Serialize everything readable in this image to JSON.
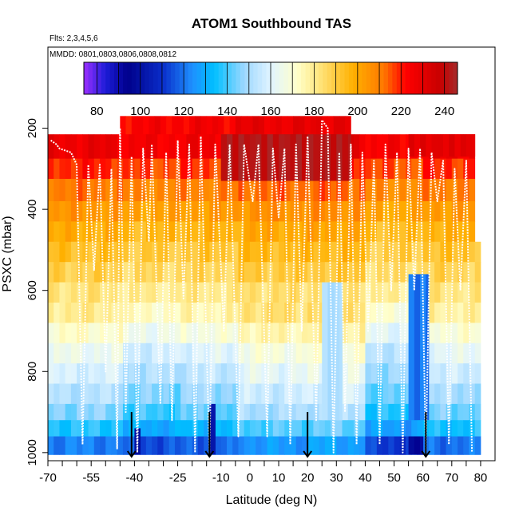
{
  "chart_data": {
    "type": "heatmap",
    "title": "ATOM1 Southbound TAS",
    "flights_label": "Flts: 2,3,4,5,6",
    "dates_label": "MMDD: 0801,0803,0806,0808,0812",
    "xlabel": "Latitude (deg N)",
    "ylabel": "PSXC (mbar)",
    "xlim": [
      -70,
      85
    ],
    "ylim": [
      1020,
      0
    ],
    "x_ticks": [
      -70,
      -55,
      -40,
      -25,
      -10,
      0,
      10,
      20,
      30,
      40,
      50,
      60,
      70,
      80
    ],
    "x_tick_labels": [
      "-70",
      "-55",
      "-40",
      "-25",
      "-10",
      "0",
      "10",
      "20",
      "30",
      "40",
      "50",
      "60",
      "70",
      "80"
    ],
    "x_minor_ticks": [
      -65,
      -60,
      -50,
      -45,
      -35,
      -30,
      -20,
      -15,
      -5,
      5,
      15,
      25,
      35,
      45,
      55,
      65,
      75
    ],
    "y_ticks": [
      200,
      400,
      600,
      800,
      1000
    ],
    "y_tick_labels": [
      "200",
      "400",
      "600",
      "800",
      "1000"
    ],
    "colorbar": {
      "min": 74,
      "max": 246,
      "ticks": [
        80,
        100,
        120,
        140,
        160,
        180,
        200,
        220,
        240
      ],
      "tick_labels": [
        "80",
        "100",
        "120",
        "140",
        "160",
        "180",
        "200",
        "220",
        "240"
      ],
      "stops": [
        {
          "v": 74,
          "color": "#9b30ff"
        },
        {
          "v": 84,
          "color": "#1c1cd8"
        },
        {
          "v": 94,
          "color": "#00008b"
        },
        {
          "v": 110,
          "color": "#0a2cc8"
        },
        {
          "v": 124,
          "color": "#1e90ff"
        },
        {
          "v": 134,
          "color": "#00bfff"
        },
        {
          "v": 148,
          "color": "#9fd8ff"
        },
        {
          "v": 160,
          "color": "#e0f4ff"
        },
        {
          "v": 172,
          "color": "#ffffcc"
        },
        {
          "v": 182,
          "color": "#ffe680"
        },
        {
          "v": 198,
          "color": "#ffb000"
        },
        {
          "v": 212,
          "color": "#ff7800"
        },
        {
          "v": 222,
          "color": "#ff0000"
        },
        {
          "v": 238,
          "color": "#c80000"
        },
        {
          "v": 246,
          "color": "#a52a2a"
        }
      ]
    },
    "pressure_layers": [
      {
        "p0": 170,
        "p1": 215,
        "lat0": -45,
        "lat1": 35,
        "tas": 225
      },
      {
        "p0": 215,
        "p1": 275,
        "tas": 226
      },
      {
        "p0": 275,
        "p1": 325,
        "tas": 218
      },
      {
        "p0": 325,
        "p1": 380,
        "tas": 210
      },
      {
        "p0": 380,
        "p1": 430,
        "tas": 203
      },
      {
        "p0": 430,
        "p1": 480,
        "tas": 197
      },
      {
        "p0": 480,
        "p1": 530,
        "tas": 192
      },
      {
        "p0": 530,
        "p1": 580,
        "tas": 187
      },
      {
        "p0": 580,
        "p1": 630,
        "tas": 181
      },
      {
        "p0": 630,
        "p1": 680,
        "tas": 176
      },
      {
        "p0": 680,
        "p1": 730,
        "tas": 168
      },
      {
        "p0": 730,
        "p1": 780,
        "tas": 160
      },
      {
        "p0": 780,
        "p1": 830,
        "tas": 154
      },
      {
        "p0": 830,
        "p1": 880,
        "tas": 148
      },
      {
        "p0": 880,
        "p1": 920,
        "tas": 142
      },
      {
        "p0": 920,
        "p1": 960,
        "tas": 133
      },
      {
        "p0": 960,
        "p1": 1005,
        "tas": 118
      }
    ],
    "lat_anomaly": [
      {
        "lat0": -70,
        "lat1": -45,
        "d": 4
      },
      {
        "lat0": -45,
        "lat1": -25,
        "d": -3
      },
      {
        "lat0": -25,
        "lat1": -5,
        "d": 0
      },
      {
        "lat0": -5,
        "lat1": 20,
        "d": 8
      },
      {
        "lat0": 20,
        "lat1": 40,
        "d": 10
      },
      {
        "lat0": 40,
        "lat1": 60,
        "d": -6
      },
      {
        "lat0": 60,
        "lat1": 80,
        "d": 2
      }
    ],
    "patches": [
      {
        "lat0": -10,
        "lat1": 35,
        "p0": 215,
        "p1": 330,
        "tas": 242
      },
      {
        "lat0": 55,
        "lat1": 78,
        "p0": 215,
        "p1": 270,
        "tas": 230
      },
      {
        "lat0": 55,
        "lat1": 62,
        "p0": 560,
        "p1": 920,
        "tas": 120
      },
      {
        "lat0": 55,
        "lat1": 60,
        "p0": 960,
        "p1": 1005,
        "tas": 96
      },
      {
        "lat0": -14,
        "lat1": -12,
        "p0": 880,
        "p1": 1005,
        "tas": 100
      },
      {
        "lat0": -40,
        "lat1": -38,
        "p0": 940,
        "p1": 1005,
        "tas": 102
      },
      {
        "lat0": 25,
        "lat1": 32,
        "p0": 580,
        "p1": 920,
        "tas": 150
      }
    ],
    "flight_track": [
      [
        -69,
        230
      ],
      [
        -67,
        240
      ],
      [
        -66,
        250
      ],
      [
        -62,
        260
      ],
      [
        -60,
        290
      ],
      [
        -58,
        980
      ],
      [
        -56,
        290
      ],
      [
        -54,
        550
      ],
      [
        -52,
        290
      ],
      [
        -50,
        800
      ],
      [
        -48,
        300
      ],
      [
        -46,
        990
      ],
      [
        -45,
        200
      ],
      [
        -43,
        900
      ],
      [
        -41,
        270
      ],
      [
        -39,
        1000
      ],
      [
        -37,
        250
      ],
      [
        -35,
        480
      ],
      [
        -34,
        240
      ],
      [
        -31,
        880
      ],
      [
        -29,
        260
      ],
      [
        -27,
        920
      ],
      [
        -25,
        230
      ],
      [
        -23,
        620
      ],
      [
        -21,
        240
      ],
      [
        -19,
        1000
      ],
      [
        -17,
        220
      ],
      [
        -14,
        1000
      ],
      [
        -12,
        240
      ],
      [
        -9,
        700
      ],
      [
        -7,
        240
      ],
      [
        -4,
        960
      ],
      [
        -2,
        240
      ],
      [
        1,
        380
      ],
      [
        3,
        240
      ],
      [
        6,
        960
      ],
      [
        8,
        250
      ],
      [
        10,
        420
      ],
      [
        12,
        250
      ],
      [
        14,
        980
      ],
      [
        16,
        240
      ],
      [
        18,
        700
      ],
      [
        20,
        220
      ],
      [
        23,
        920
      ],
      [
        25,
        180
      ],
      [
        27,
        200
      ],
      [
        29,
        1000
      ],
      [
        31,
        260
      ],
      [
        33,
        900
      ],
      [
        35,
        240
      ],
      [
        37,
        980
      ],
      [
        39,
        260
      ],
      [
        41,
        700
      ],
      [
        43,
        280
      ],
      [
        45,
        980
      ],
      [
        47,
        240
      ],
      [
        49,
        600
      ],
      [
        51,
        260
      ],
      [
        53,
        1000
      ],
      [
        55,
        250
      ],
      [
        57,
        600
      ],
      [
        59,
        250
      ],
      [
        61,
        1000
      ],
      [
        63,
        260
      ],
      [
        65,
        380
      ],
      [
        67,
        280
      ],
      [
        69,
        980
      ],
      [
        71,
        300
      ],
      [
        73,
        600
      ],
      [
        75,
        280
      ],
      [
        77,
        1000
      ]
    ],
    "profile_arrows_lat": [
      -41,
      -14,
      20,
      61
    ]
  }
}
